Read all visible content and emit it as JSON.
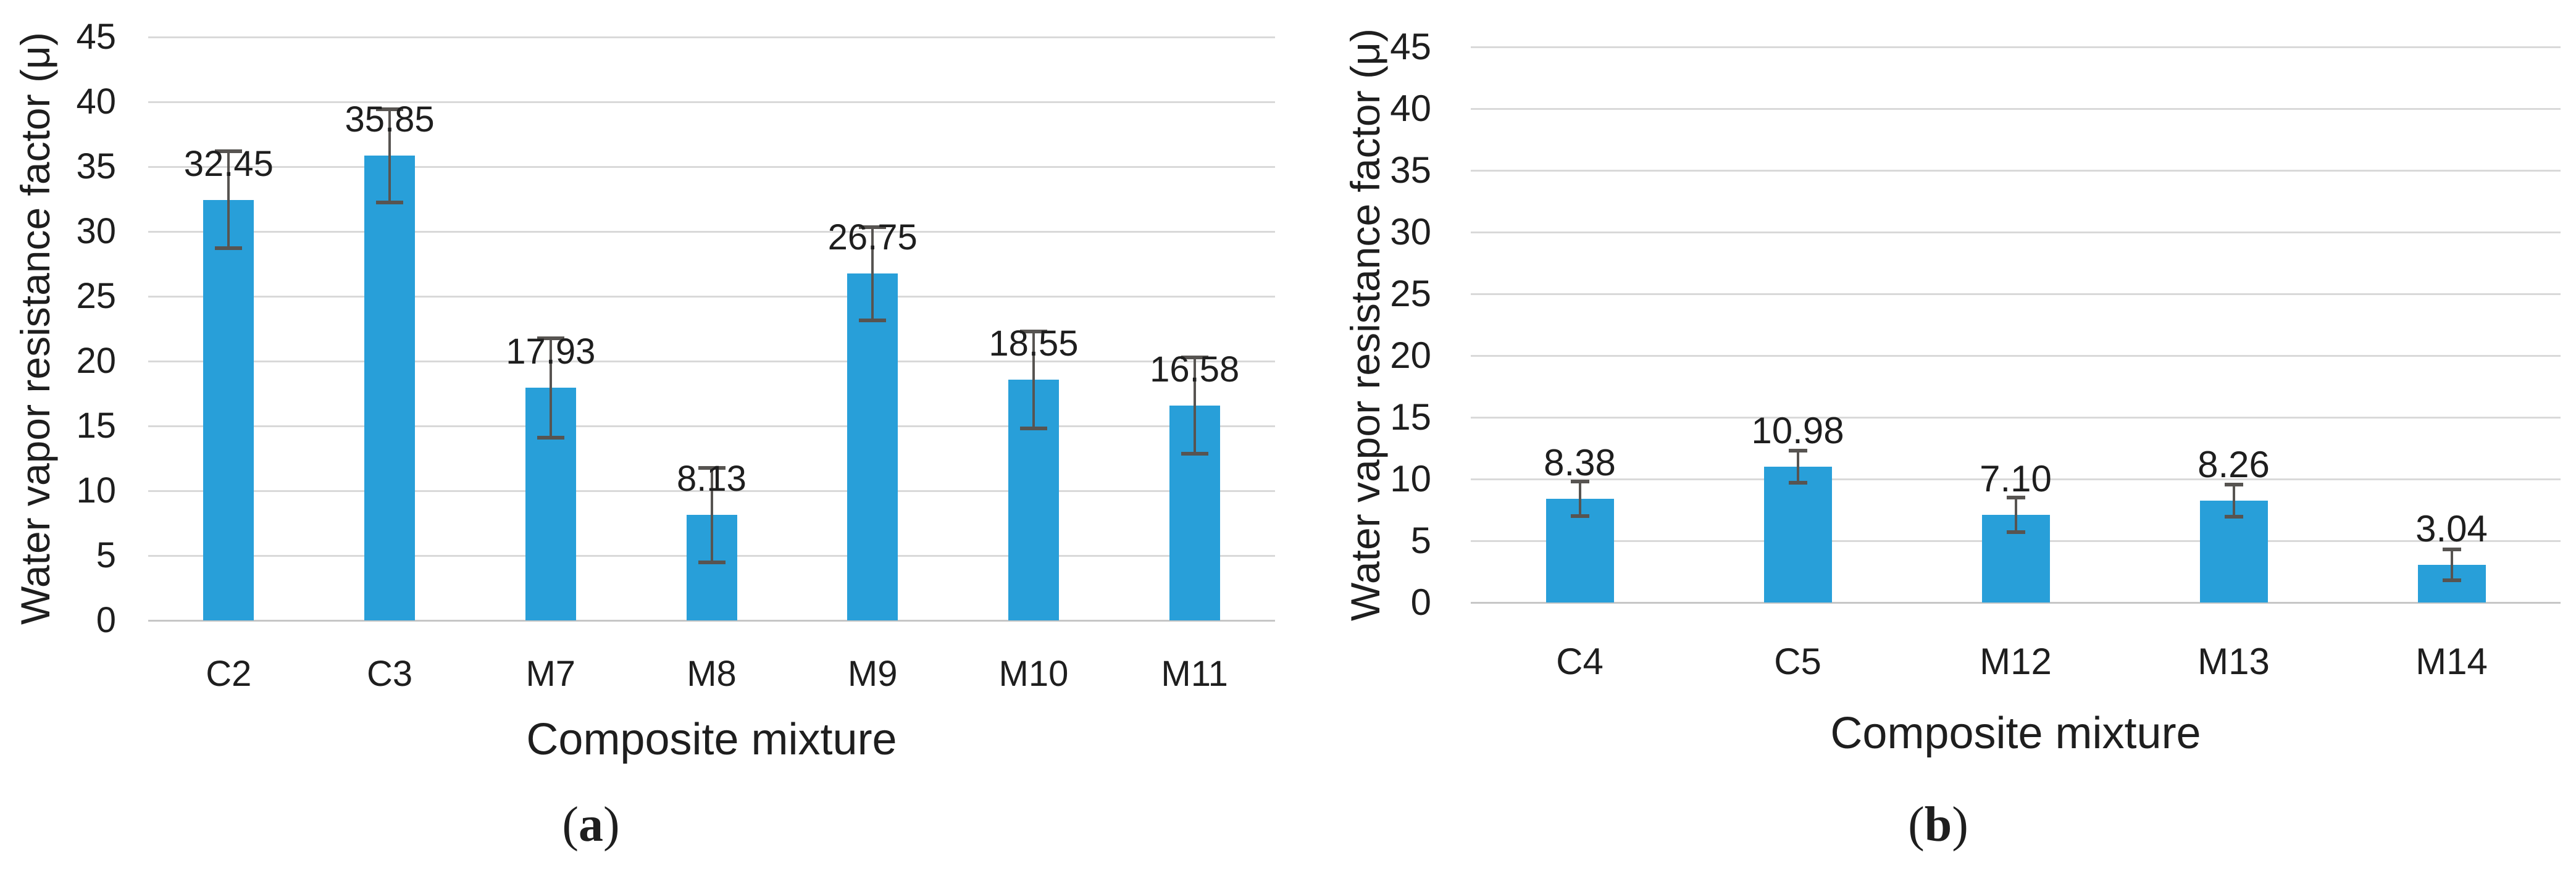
{
  "colors": {
    "bar": "#289FD9",
    "error_bar": "#575451",
    "gridline": "#D9D9D9",
    "baseline": "#C6C6C6",
    "text": "#1E1E1E"
  },
  "chart_data": [
    {
      "type": "bar",
      "panel": {
        "prefix": "(",
        "letter": "a",
        "suffix": ")"
      },
      "title": "",
      "ylabel": "Water vapor resistance factor (μ)",
      "xlabel": "Composite mixture",
      "categories": [
        "C2",
        "C3",
        "M7",
        "M8",
        "M9",
        "M10",
        "M11"
      ],
      "values": [
        32.45,
        35.85,
        17.93,
        8.13,
        26.75,
        18.55,
        16.58
      ],
      "value_labels": [
        "32.45",
        "35.85",
        "17.93",
        "8.13",
        "26.75",
        "18.55",
        "16.58"
      ],
      "errors": [
        3.75,
        3.6,
        3.85,
        3.65,
        3.6,
        3.75,
        3.7
      ],
      "ylim": [
        0,
        45
      ],
      "yticks": [
        0,
        5,
        10,
        15,
        20,
        25,
        30,
        35,
        40,
        45
      ],
      "grid": true,
      "legend": "none"
    },
    {
      "type": "bar",
      "panel": {
        "prefix": "(",
        "letter": "b",
        "suffix": ")"
      },
      "title": "",
      "ylabel": "Water vapor resistance factor (μ)",
      "xlabel": "Composite mixture",
      "categories": [
        "C4",
        "C5",
        "M12",
        "M13",
        "M14"
      ],
      "values": [
        8.38,
        10.98,
        7.1,
        8.26,
        3.04
      ],
      "value_labels": [
        "8.38",
        "10.98",
        "7.10",
        "8.26",
        "3.04"
      ],
      "errors": [
        1.4,
        1.3,
        1.4,
        1.3,
        1.25
      ],
      "ylim": [
        0,
        45
      ],
      "yticks": [
        0,
        5,
        10,
        15,
        20,
        25,
        30,
        35,
        40,
        45
      ],
      "grid": true,
      "legend": "none"
    }
  ]
}
